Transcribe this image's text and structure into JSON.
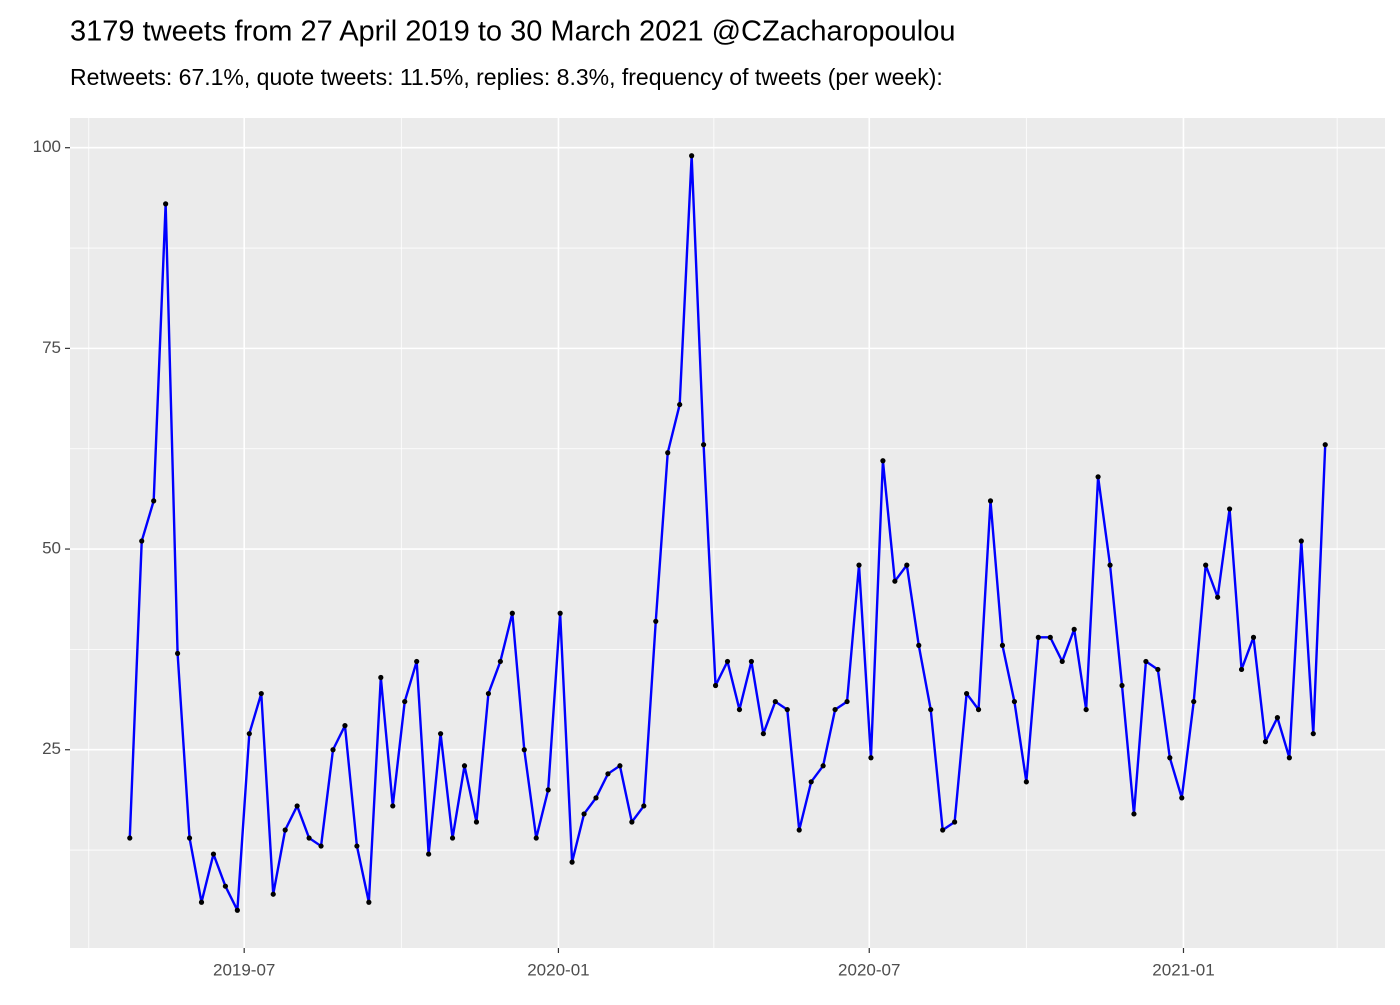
{
  "chart_data": {
    "type": "line",
    "title": "3179 tweets from 27 April 2019 to 30 March 2021 @CZacharopoulou",
    "subtitle": "Retweets: 67.1%, quote tweets: 11.5%, replies: 8.3%, frequency of tweets (per week):",
    "x": [
      "2019-04-25",
      "2019-05-02",
      "2019-05-09",
      "2019-05-16",
      "2019-05-23",
      "2019-05-30",
      "2019-06-06",
      "2019-06-13",
      "2019-06-20",
      "2019-06-27",
      "2019-07-04",
      "2019-07-11",
      "2019-07-18",
      "2019-07-25",
      "2019-08-01",
      "2019-08-08",
      "2019-08-15",
      "2019-08-22",
      "2019-08-29",
      "2019-09-05",
      "2019-09-12",
      "2019-09-19",
      "2019-09-26",
      "2019-10-03",
      "2019-10-10",
      "2019-10-17",
      "2019-10-24",
      "2019-10-31",
      "2019-11-07",
      "2019-11-14",
      "2019-11-21",
      "2019-11-28",
      "2019-12-05",
      "2019-12-12",
      "2019-12-19",
      "2019-12-26",
      "2020-01-02",
      "2020-01-09",
      "2020-01-16",
      "2020-01-23",
      "2020-01-30",
      "2020-02-06",
      "2020-02-13",
      "2020-02-20",
      "2020-02-27",
      "2020-03-05",
      "2020-03-12",
      "2020-03-19",
      "2020-03-26",
      "2020-04-02",
      "2020-04-09",
      "2020-04-16",
      "2020-04-23",
      "2020-04-30",
      "2020-05-07",
      "2020-05-14",
      "2020-05-21",
      "2020-05-28",
      "2020-06-04",
      "2020-06-11",
      "2020-06-18",
      "2020-06-25",
      "2020-07-02",
      "2020-07-09",
      "2020-07-16",
      "2020-07-23",
      "2020-07-30",
      "2020-08-06",
      "2020-08-13",
      "2020-08-20",
      "2020-08-27",
      "2020-09-03",
      "2020-09-10",
      "2020-09-17",
      "2020-09-24",
      "2020-10-01",
      "2020-10-08",
      "2020-10-15",
      "2020-10-22",
      "2020-10-29",
      "2020-11-05",
      "2020-11-12",
      "2020-11-19",
      "2020-11-26",
      "2020-12-03",
      "2020-12-10",
      "2020-12-17",
      "2020-12-24",
      "2020-12-31",
      "2021-01-07",
      "2021-01-14",
      "2021-01-21",
      "2021-01-28",
      "2021-02-04",
      "2021-02-11",
      "2021-02-18",
      "2021-02-25",
      "2021-03-04",
      "2021-03-11",
      "2021-03-18",
      "2021-03-25"
    ],
    "values": [
      14,
      51,
      56,
      93,
      37,
      14,
      6,
      12,
      8,
      5,
      27,
      32,
      7,
      15,
      18,
      14,
      13,
      25,
      28,
      13,
      6,
      34,
      18,
      31,
      36,
      12,
      27,
      14,
      23,
      16,
      32,
      36,
      42,
      25,
      14,
      20,
      42,
      11,
      17,
      19,
      22,
      23,
      16,
      18,
      41,
      62,
      68,
      99,
      63,
      33,
      36,
      30,
      36,
      27,
      31,
      30,
      15,
      21,
      23,
      30,
      31,
      48,
      24,
      61,
      46,
      48,
      38,
      30,
      15,
      16,
      32,
      30,
      56,
      38,
      31,
      21,
      39,
      39,
      36,
      40,
      30,
      59,
      48,
      33,
      17,
      36,
      35,
      24,
      19,
      31,
      48,
      44,
      55,
      35,
      39,
      26,
      29,
      24,
      51,
      27,
      63
    ],
    "color": "#0000ff",
    "point_color": "#000000",
    "xlim": [
      "2019-03-21",
      "2021-04-29"
    ],
    "xticks": [
      {
        "value": "2019-07-01",
        "label": "2019-07"
      },
      {
        "value": "2020-01-01",
        "label": "2020-01"
      },
      {
        "value": "2020-07-01",
        "label": "2020-07"
      },
      {
        "value": "2021-01-01",
        "label": "2021-01"
      }
    ],
    "xminorticks": [
      "2019-04-01",
      "2019-10-01",
      "2020-04-01",
      "2020-10-01",
      "2021-04-01"
    ],
    "ylim": [
      0.3,
      103.7
    ],
    "yticks": [
      25,
      50,
      75,
      100
    ],
    "yminorticks": [
      12.5,
      37.5,
      62.5,
      87.5
    ],
    "grid": true
  }
}
